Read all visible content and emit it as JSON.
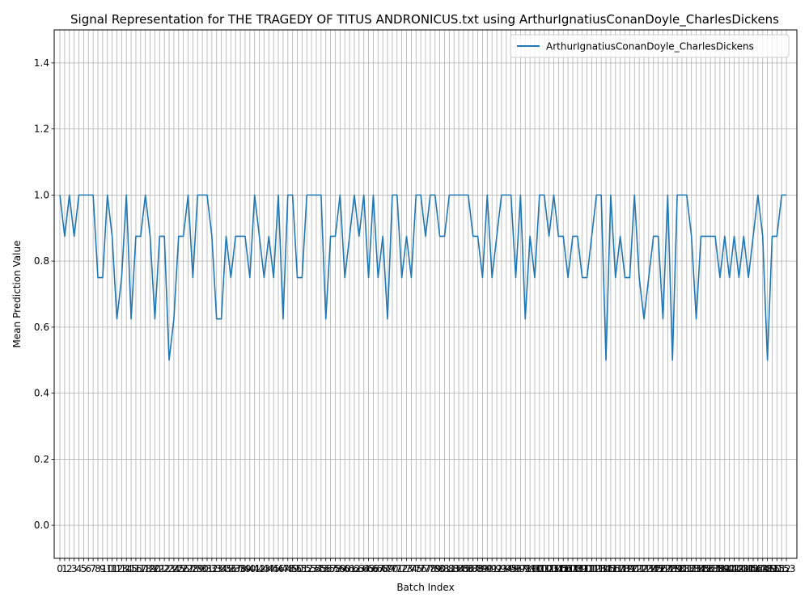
{
  "chart_data": {
    "type": "line",
    "title": "Signal Representation for THE TRAGEDY OF TITUS ANDRONICUS.txt using ArthurIgnatiusConanDoyle_CharlesDickens",
    "xlabel": "Batch Index",
    "ylabel": "Mean Prediction Value",
    "xlim": [
      -1.2,
      155.2
    ],
    "ylim": [
      -0.1,
      1.5
    ],
    "yticks": [
      0.0,
      0.2,
      0.4,
      0.6,
      0.8,
      1.0,
      1.2,
      1.4
    ],
    "ytick_labels": [
      "0.0",
      "0.2",
      "0.4",
      "0.6",
      "0.8",
      "1.0",
      "1.2",
      "1.4"
    ],
    "xticks_start": 0,
    "xticks_end": 153,
    "grid": true,
    "legend": "top-right",
    "colors": {
      "series": "#1f77b4",
      "grid": "#b0b0b0"
    },
    "series": [
      {
        "name": "ArthurIgnatiusConanDoyle_CharlesDickens",
        "x_start": 0,
        "values": [
          1.0,
          0.875,
          1.0,
          0.875,
          1.0,
          1.0,
          1.0,
          1.0,
          0.75,
          0.75,
          1.0,
          0.875,
          0.625,
          0.75,
          1.0,
          0.625,
          0.875,
          0.875,
          1.0,
          0.875,
          0.625,
          0.875,
          0.875,
          0.5,
          0.625,
          0.875,
          0.875,
          1.0,
          0.75,
          1.0,
          1.0,
          1.0,
          0.875,
          0.625,
          0.625,
          0.875,
          0.75,
          0.875,
          0.875,
          0.875,
          0.75,
          1.0,
          0.875,
          0.75,
          0.875,
          0.75,
          1.0,
          0.625,
          1.0,
          1.0,
          0.75,
          0.75,
          1.0,
          1.0,
          1.0,
          1.0,
          0.625,
          0.875,
          0.875,
          1.0,
          0.75,
          0.875,
          1.0,
          0.875,
          1.0,
          0.75,
          1.0,
          0.75,
          0.875,
          0.625,
          1.0,
          1.0,
          0.75,
          0.875,
          0.75,
          1.0,
          1.0,
          0.875,
          1.0,
          1.0,
          0.875,
          0.875,
          1.0,
          1.0,
          1.0,
          1.0,
          1.0,
          0.875,
          0.875,
          0.75,
          1.0,
          0.75,
          0.875,
          1.0,
          1.0,
          1.0,
          0.75,
          1.0,
          0.625,
          0.875,
          0.75,
          1.0,
          1.0,
          0.875,
          1.0,
          0.875,
          0.875,
          0.75,
          0.875,
          0.875,
          0.75,
          0.75,
          0.875,
          1.0,
          1.0,
          0.5,
          1.0,
          0.75,
          0.875,
          0.75,
          0.75,
          1.0,
          0.75,
          0.625,
          0.75,
          0.875,
          0.875,
          0.625,
          1.0,
          0.5,
          1.0,
          1.0,
          1.0,
          0.875,
          0.625,
          0.875,
          0.875,
          0.875,
          0.875,
          0.75,
          0.875,
          0.75,
          0.875,
          0.75,
          0.875,
          0.75,
          0.875,
          1.0,
          0.875,
          0.5,
          0.875,
          0.875,
          1.0,
          1.0
        ]
      }
    ]
  }
}
